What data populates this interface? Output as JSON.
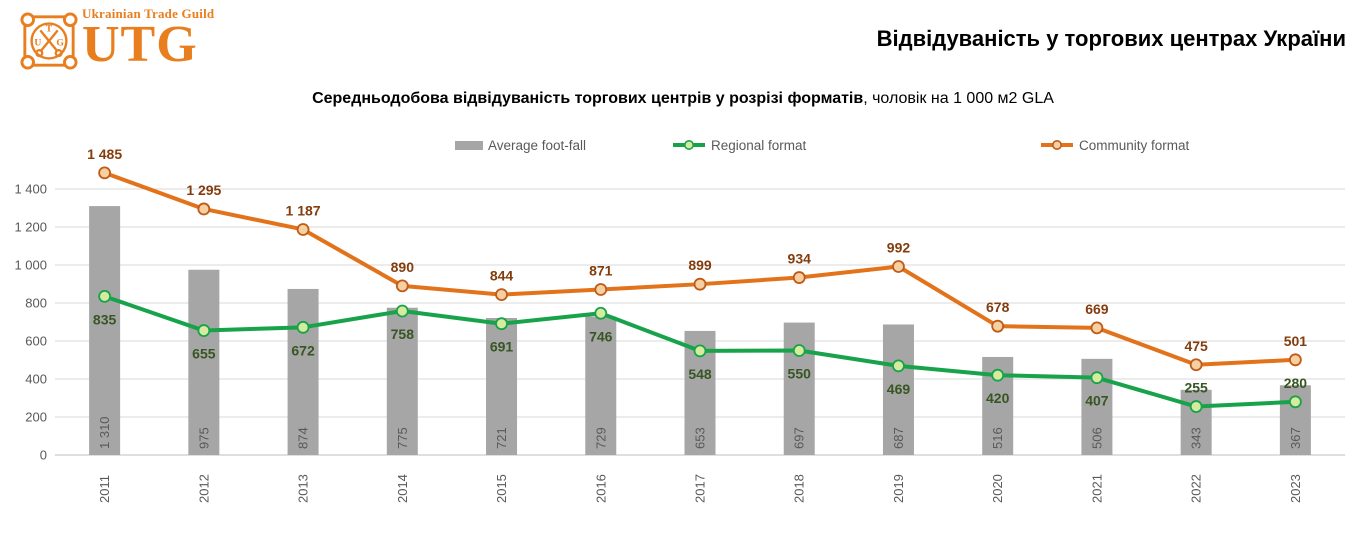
{
  "header": {
    "logo": {
      "brand_small": "Ukrainian Trade Guild",
      "brand_large": "UTG",
      "emblem": {
        "top": "T",
        "left": "U",
        "right": "G"
      },
      "color": "#e87e1e"
    },
    "title": "Відвідуваність у торгових центрах України"
  },
  "subtitle": {
    "bold": "Середньодобова відвідуваність торгових центрів у розрізі форматів",
    "regular": ", чоловік на 1 000 м2 GLA"
  },
  "chart_data": {
    "type": "bar",
    "subtype": "bar-line-combo",
    "title": "Середньодобова відвідуваність торгових центрів у розрізі форматів, чоловік на 1 000 м2 GLA",
    "categories": [
      "2011",
      "2012",
      "2013",
      "2014",
      "2015",
      "2016",
      "2017",
      "2018",
      "2019",
      "2020",
      "2021",
      "2022",
      "2023"
    ],
    "series": [
      {
        "name": "Average foot-fall",
        "type": "bar",
        "color": "#a6a6a6",
        "label_color": "#595959",
        "values": [
          1310,
          975,
          874,
          775,
          721,
          729,
          653,
          697,
          687,
          516,
          506,
          343,
          367
        ]
      },
      {
        "name": "Regional format",
        "type": "line",
        "color": "#18a34b",
        "marker_fill": "#d6eb9e",
        "marker_stroke": "#18a34b",
        "label_color": "#375623",
        "values": [
          835,
          655,
          672,
          758,
          691,
          746,
          548,
          550,
          469,
          420,
          407,
          255,
          280
        ],
        "labels_above_indices": [
          11,
          12
        ]
      },
      {
        "name": "Community format",
        "type": "line",
        "color": "#e2731a",
        "marker_fill": "#f6cfa2",
        "marker_stroke": "#bf5b17",
        "label_color": "#843c0c",
        "values": [
          1485,
          1295,
          1187,
          890,
          844,
          871,
          899,
          934,
          992,
          678,
          669,
          475,
          501
        ]
      }
    ],
    "y_ticks": [
      0,
      200,
      400,
      600,
      800,
      1000,
      1200,
      1400
    ],
    "ylim": [
      0,
      1500
    ],
    "grid": true,
    "legend_position": "top",
    "axis_text_color": "#595959",
    "grid_color": "#d9d9d9",
    "zero_line_color": "#bfbfbf",
    "x_labels_rotated": true,
    "bar_labels_rotated": true
  }
}
